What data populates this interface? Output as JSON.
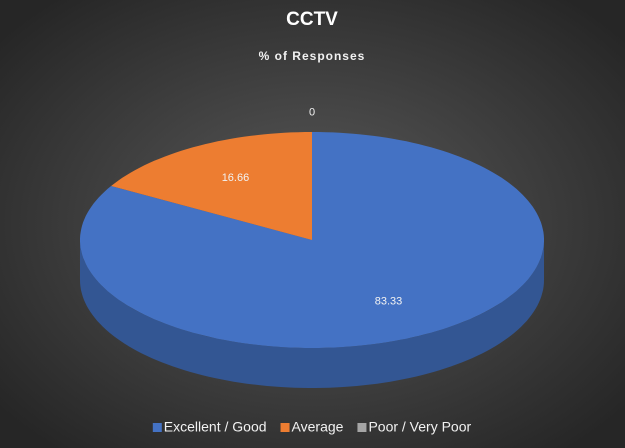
{
  "chart_data": {
    "type": "pie",
    "title": "CCTV",
    "subtitle": "% of Responses",
    "categories": [
      "Excellent / Good",
      "Average",
      "Poor / Very Poor"
    ],
    "values": [
      83.33,
      16.66,
      0
    ],
    "colors": [
      "#4472c4",
      "#ed7d31",
      "#a5a5a5"
    ],
    "legend": "bottom"
  }
}
